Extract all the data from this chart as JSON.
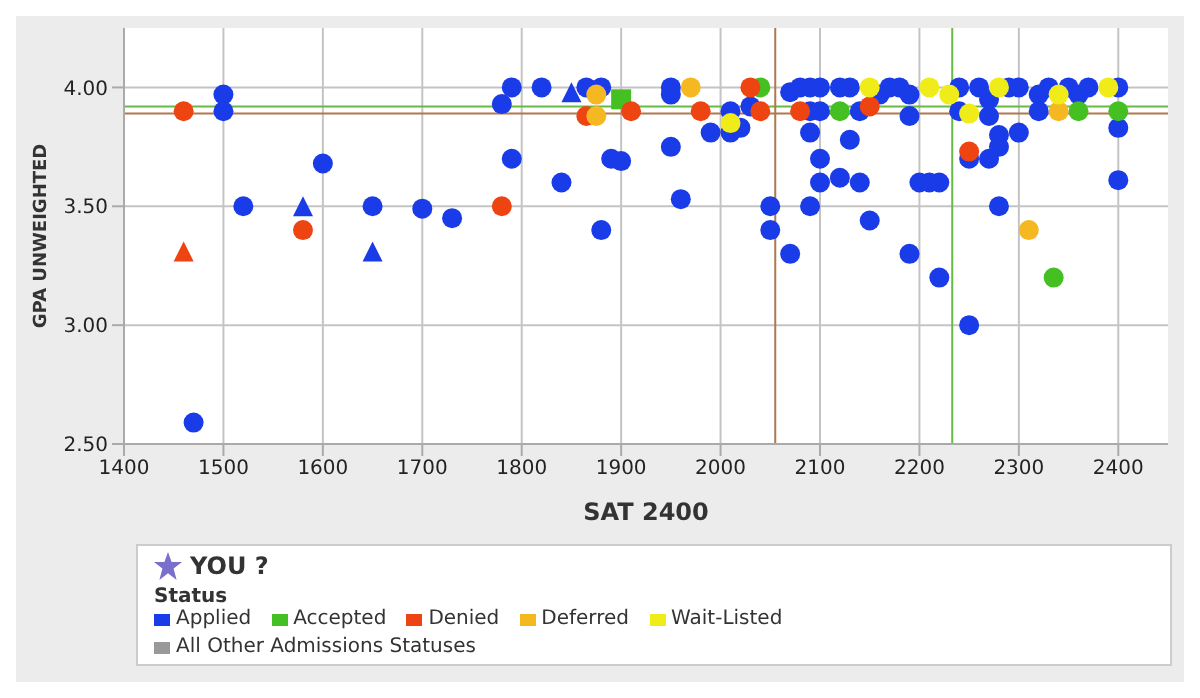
{
  "chart_data": {
    "type": "scatter",
    "xlabel": "SAT 2400",
    "ylabel": "GPA UNWEIGHTED",
    "legend_title": "Status",
    "annotations": [
      "YOU ?"
    ],
    "xlim": [
      1400,
      2450
    ],
    "xticks": [
      1400,
      1500,
      1600,
      1700,
      1800,
      1900,
      2000,
      2100,
      2200,
      2300,
      2400
    ],
    "ylim": [
      2.5,
      4.25
    ],
    "yticks": [
      {
        "value": 2.5,
        "label": "2.50"
      },
      {
        "value": 3,
        "label": "3.00"
      },
      {
        "value": 3.5,
        "label": "3.50"
      },
      {
        "value": 4,
        "label": "4.00"
      }
    ],
    "grid": true,
    "legend": "bottom",
    "marker": "circle",
    "ref_lines": [
      {
        "axis": "y",
        "value": 3.92,
        "color": "#66bb44"
      },
      {
        "axis": "y",
        "value": 3.89,
        "color": "#b07850"
      },
      {
        "axis": "x",
        "value": 2055,
        "color": "#b07850"
      },
      {
        "axis": "x",
        "value": 2233,
        "color": "#66bb44"
      }
    ],
    "series": [
      {
        "name": "Applied",
        "color": "#1a3be8",
        "x": [
          1500,
          1500,
          1520,
          1600,
          1650,
          1700,
          1730,
          1470,
          1780,
          1790,
          1790,
          1820,
          1840,
          1865,
          1880,
          1880,
          1900,
          1890,
          1950,
          1950,
          1990,
          2010,
          2020,
          2010,
          2030,
          1950,
          1960,
          2050,
          2050,
          2070,
          2070,
          2080,
          2090,
          2100,
          2090,
          2100,
          2090,
          2100,
          2100,
          2090,
          2120,
          2130,
          2140,
          2150,
          2120,
          2130,
          2140,
          2170,
          2180,
          2190,
          2190,
          2190,
          2200,
          2210,
          2220,
          2220,
          2240,
          2240,
          2250,
          2250,
          2260,
          2270,
          2270,
          2280,
          2280,
          2280,
          2290,
          2300,
          2300,
          2320,
          2320,
          2330,
          2350,
          2360,
          2370,
          2400,
          2400,
          2400,
          2160,
          2270
        ],
        "values": [
          3.97,
          3.9,
          3.5,
          3.68,
          3.5,
          3.49,
          3.45,
          2.59,
          3.93,
          4.0,
          3.7,
          4.0,
          3.6,
          4.0,
          4.0,
          3.4,
          3.69,
          3.7,
          4.0,
          3.97,
          3.81,
          3.81,
          3.83,
          3.9,
          3.92,
          3.75,
          3.53,
          3.5,
          3.4,
          3.3,
          3.98,
          4.0,
          4.0,
          4.0,
          3.9,
          3.9,
          3.81,
          3.7,
          3.6,
          3.5,
          3.62,
          3.78,
          3.6,
          3.44,
          4.0,
          4.0,
          3.9,
          4.0,
          4.0,
          3.97,
          3.88,
          3.3,
          3.6,
          3.6,
          3.6,
          3.2,
          4.0,
          3.9,
          3.0,
          3.7,
          4.0,
          3.7,
          3.88,
          3.8,
          3.75,
          3.5,
          4.0,
          3.81,
          4.0,
          3.97,
          3.9,
          4.0,
          4.0,
          3.97,
          4.0,
          4.0,
          3.83,
          3.61,
          3.97,
          3.95
        ]
      },
      {
        "color": "#1a3be8",
        "marker": "triangle",
        "x": [
          1580,
          1650,
          1850
        ],
        "values": [
          3.5,
          3.31,
          3.98
        ]
      },
      {
        "name": "Accepted",
        "color": "#44c022",
        "x": [
          2360,
          2400,
          2335,
          2040,
          2120
        ],
        "values": [
          3.9,
          3.9,
          3.2,
          4.0,
          3.9
        ]
      },
      {
        "color": "#44c022",
        "marker": "square",
        "x": [
          1900
        ],
        "values": [
          3.95
        ]
      },
      {
        "name": "Denied",
        "color": "#ee4411",
        "x": [
          1460,
          1580,
          1780,
          1865,
          1910,
          1980,
          2040,
          2080,
          2030,
          2250,
          2150
        ],
        "values": [
          3.9,
          3.4,
          3.5,
          3.88,
          3.9,
          3.9,
          3.9,
          3.9,
          4.0,
          3.73,
          3.92
        ]
      },
      {
        "color": "#ee4411",
        "marker": "triangle",
        "x": [
          1460
        ],
        "values": [
          3.31
        ]
      },
      {
        "name": "Deferred",
        "color": "#f5b820",
        "x": [
          1875,
          1970,
          2340,
          2310,
          1875
        ],
        "values": [
          3.88,
          4.0,
          3.9,
          3.4,
          3.97
        ]
      },
      {
        "name": "Wait-Listed",
        "color": "#f0ec1a",
        "x": [
          2010,
          2150,
          2210,
          2250,
          2280,
          2340,
          2390,
          2230
        ],
        "values": [
          3.85,
          4.0,
          4.0,
          3.89,
          4.0,
          3.97,
          4.0,
          3.97
        ]
      },
      {
        "name": "All Other Admissions Statuses",
        "color": "#999999"
      }
    ]
  }
}
